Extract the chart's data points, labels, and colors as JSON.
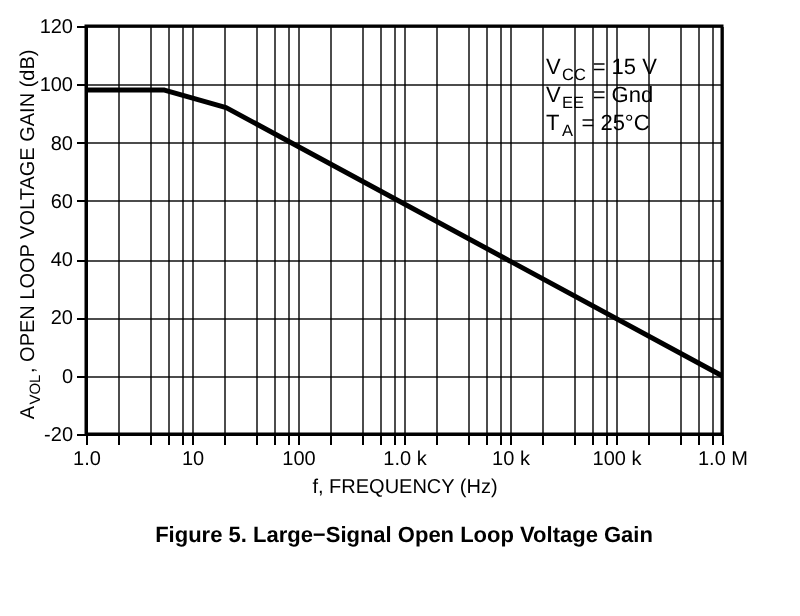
{
  "chart_data": {
    "type": "line",
    "title": "Figure 5. Large−Signal Open Loop Voltage Gain",
    "xlabel": "f, FREQUENCY (Hz)",
    "ylabel": "A$_{VOL}$, OPEN LOOP VOLTAGE GAIN (dB)",
    "annotations": [
      "V$_{CC}$ = 15 V",
      "V$_{EE}$ = Gnd",
      "T$_{A}$ = 25°C"
    ],
    "series": [
      {
        "color": "#000000",
        "x": [
          1,
          5.5,
          21,
          1000000
        ],
        "values": [
          98,
          98,
          92,
          0
        ]
      }
    ],
    "log": "x",
    "xlim": [
      1,
      1000000
    ],
    "ylim": [
      -20,
      120
    ],
    "xticks": [
      {
        "value": 1,
        "label": "1.0"
      },
      {
        "value": 2,
        "label": null
      },
      {
        "value": 4,
        "label": null
      },
      {
        "value": 6,
        "label": null
      },
      {
        "value": 8,
        "label": null
      },
      {
        "value": 10,
        "label": "10"
      },
      {
        "value": 20,
        "label": null
      },
      {
        "value": 40,
        "label": null
      },
      {
        "value": 60,
        "label": null
      },
      {
        "value": 80,
        "label": null
      },
      {
        "value": 100,
        "label": "100"
      },
      {
        "value": 200,
        "label": null
      },
      {
        "value": 400,
        "label": null
      },
      {
        "value": 600,
        "label": null
      },
      {
        "value": 800,
        "label": null
      },
      {
        "value": 1000,
        "label": "1.0 k"
      },
      {
        "value": 2000,
        "label": null
      },
      {
        "value": 4000,
        "label": null
      },
      {
        "value": 6000,
        "label": null
      },
      {
        "value": 8000,
        "label": null
      },
      {
        "value": 10000,
        "label": "10 k"
      },
      {
        "value": 20000,
        "label": null
      },
      {
        "value": 40000,
        "label": null
      },
      {
        "value": 60000,
        "label": null
      },
      {
        "value": 80000,
        "label": null
      },
      {
        "value": 100000,
        "label": "100 k"
      },
      {
        "value": 200000,
        "label": null
      },
      {
        "value": 400000,
        "label": null
      },
      {
        "value": 600000,
        "label": null
      },
      {
        "value": 800000,
        "label": null
      },
      {
        "value": 1000000,
        "label": "1.0 M"
      }
    ],
    "yticks": [
      -20,
      0,
      20,
      40,
      60,
      80,
      100,
      120
    ],
    "grid": true,
    "marker": "none",
    "line_style": "solid"
  }
}
